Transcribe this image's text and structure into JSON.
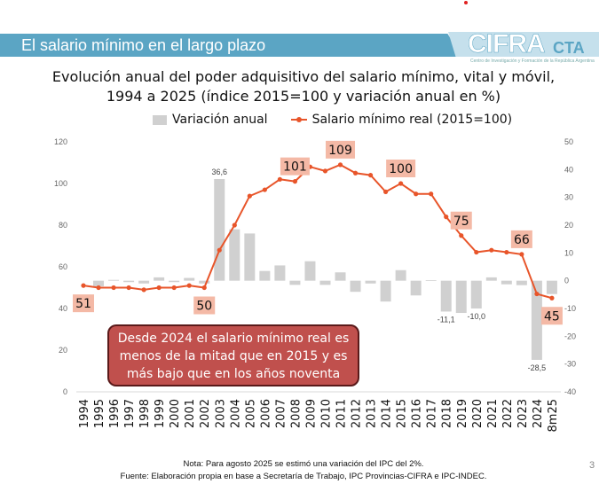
{
  "header": {
    "title": "El salario mínimo en el largo plazo"
  },
  "logo": {
    "name": "CIFRA",
    "suffix": "CTA",
    "subtitle": "Centro de Investigación y Formación de la República Argentina"
  },
  "chart_data": {
    "type": "bar+line",
    "title": "Evolución anual del poder adquisitivo del salario mínimo, vital y móvil,",
    "subtitle": "1994 a 2025 (índice 2015=100 y variación anual en %)",
    "legend_position": "top",
    "categories": [
      "1994",
      "1995",
      "1996",
      "1997",
      "1998",
      "1999",
      "2000",
      "2001",
      "2002",
      "2003",
      "2004",
      "2005",
      "2006",
      "2007",
      "2008",
      "2009",
      "2010",
      "2011",
      "2012",
      "2013",
      "2014",
      "2015",
      "2016",
      "2017",
      "2018",
      "2019",
      "2020",
      "2021",
      "2022",
      "2023",
      "2024",
      "8m25"
    ],
    "series": [
      {
        "name": "Variación anual",
        "type": "bar",
        "axis": "right",
        "color": "#d0d0d0",
        "values": [
          null,
          -2.0,
          0.3,
          -0.5,
          -1.0,
          1.2,
          -0.5,
          1.0,
          -1.0,
          36.6,
          18.5,
          17.0,
          3.5,
          5.5,
          -1.5,
          7.0,
          -1.5,
          3.0,
          -4.0,
          -1.0,
          -7.5,
          3.8,
          -5.3,
          0.2,
          -11.1,
          -11.6,
          -10.0,
          1.2,
          -1.3,
          -1.6,
          -28.5,
          -4.8
        ],
        "data_labels": {
          "2003": "36,6",
          "2018": "-11,1",
          "2020": "-10,0",
          "2024": "-28,5"
        }
      },
      {
        "name": "Salario mínimo real (2015=100)",
        "type": "line",
        "axis": "left",
        "color": "#e8552a",
        "values": [
          51,
          50,
          50,
          50,
          49,
          50,
          50,
          51,
          50,
          68,
          80,
          94,
          97,
          102,
          101,
          108,
          106,
          109,
          105,
          104,
          96,
          100,
          95,
          95,
          84,
          75,
          67,
          68,
          67,
          66,
          47,
          45
        ],
        "data_labels": {
          "1994": "51",
          "2002": "50",
          "2008": "101",
          "2011": "109",
          "2015": "100",
          "2019": "75",
          "2023": "66",
          "8m25": "45"
        }
      }
    ],
    "left_axis": {
      "ylim": [
        0,
        120
      ],
      "ticks": [
        "0",
        "20",
        "40",
        "60",
        "80",
        "100",
        "120"
      ]
    },
    "right_axis": {
      "ylim": [
        -40,
        50
      ],
      "ticks": [
        "-40",
        "-30",
        "-20",
        "-10",
        "0",
        "10",
        "20",
        "30",
        "40",
        "50"
      ]
    },
    "label_box_color": "#f4b9a6",
    "grid": false
  },
  "callout": {
    "lines": [
      "Desde 2024 el salario mínimo real es",
      "menos de la mitad que en 2015 y es",
      "más bajo que en los años noventa"
    ],
    "color": "#c0504d"
  },
  "footer": {
    "note": "Nota: Para agosto 2025 se estimó una variación del IPC del 2%.",
    "source": "Fuente: Elaboración propia en base a Secretaría de Trabajo, IPC Provincias-CIFRA e IPC-INDEC.",
    "page": "3"
  }
}
